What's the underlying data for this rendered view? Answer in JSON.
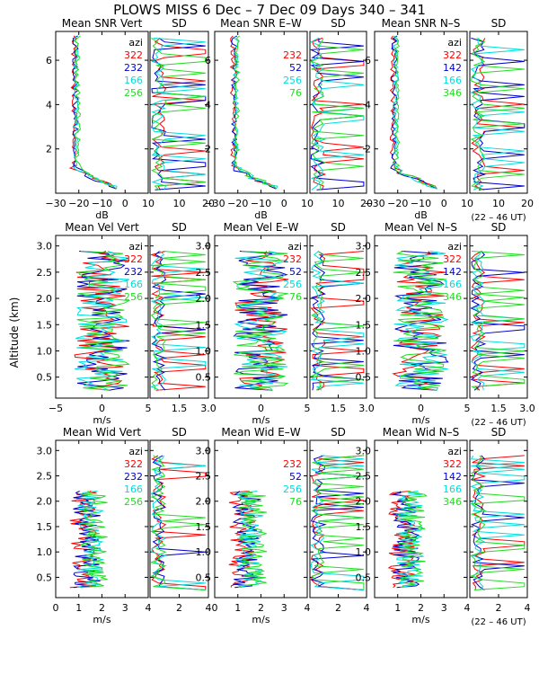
{
  "title": "PLOWS MISS   6 Dec –  7 Dec 09 Days 340 – 341",
  "y_axis_label": "Altitude (km)",
  "time_note": "(22 – 46 UT)",
  "colors": {
    "axes": "#000000",
    "red": "#ff0000",
    "blue": "#0000cc",
    "cyan": "#00dddd",
    "green": "#22dd22"
  },
  "chart_data": [
    {
      "type": "line",
      "row": "snr",
      "ylim": [
        0,
        7.3
      ],
      "ylabels": [
        "2",
        "4",
        "6"
      ],
      "yticks": [
        2,
        4,
        6
      ],
      "xunit": "dB",
      "show_time_note": true,
      "panels": [
        {
          "id": "snr-vert",
          "title": "Mean SNR Vert",
          "kind": "mean",
          "xlim": [
            -30,
            10
          ],
          "xticks": [
            -30,
            -20,
            -10,
            0,
            10
          ],
          "xticklabels": [
            "−30",
            "−20",
            "−10",
            "0",
            "10"
          ],
          "legend": {
            "header": "azi",
            "entries": [
              "322",
              "232",
              "166",
              "256"
            ],
            "colors": [
              "red",
              "blue",
              "cyan",
              "green"
            ]
          }
        },
        {
          "id": "snr-vert-sd",
          "title": "SD",
          "kind": "sd",
          "xlim": [
            0,
            20
          ],
          "xticks": [
            10,
            20
          ],
          "xticklabels": [
            "10",
            "20"
          ]
        },
        {
          "id": "snr-ew",
          "title": "Mean SNR E–W",
          "kind": "mean",
          "xlim": [
            -30,
            10
          ],
          "xticks": [
            -30,
            -20,
            -10,
            0,
            10
          ],
          "xticklabels": [
            "−30",
            "−20",
            "−10",
            "0",
            "10"
          ],
          "legend": {
            "header": "",
            "entries": [
              "232",
              "52",
              "256",
              "76"
            ],
            "colors": [
              "red",
              "blue",
              "cyan",
              "green"
            ]
          }
        },
        {
          "id": "snr-ew-sd",
          "title": "SD",
          "kind": "sd",
          "xlim": [
            0,
            20
          ],
          "xticks": [
            10,
            20
          ],
          "xticklabels": [
            "10",
            "20"
          ]
        },
        {
          "id": "snr-ns",
          "title": "Mean SNR N–S",
          "kind": "mean",
          "xlim": [
            -30,
            10
          ],
          "xticks": [
            -30,
            -20,
            -10,
            0,
            10
          ],
          "xticklabels": [
            "−30",
            "−20",
            "−10",
            "0",
            "10"
          ],
          "legend": {
            "header": "azi",
            "entries": [
              "322",
              "142",
              "166",
              "346"
            ],
            "colors": [
              "red",
              "blue",
              "cyan",
              "green"
            ]
          }
        },
        {
          "id": "snr-ns-sd",
          "title": "SD",
          "kind": "sd",
          "xlim": [
            0,
            20
          ],
          "xticks": [
            10,
            20
          ],
          "xticklabels": [
            "10",
            "20"
          ]
        }
      ]
    },
    {
      "type": "line",
      "row": "vel",
      "ylim": [
        0.1,
        3.2
      ],
      "ylabels": [
        "0.5",
        "1.0",
        "1.5",
        "2.0",
        "2.5",
        "3.0"
      ],
      "yticks": [
        0.5,
        1,
        1.5,
        2,
        2.5,
        3
      ],
      "xunit": "m/s",
      "show_time_note": true,
      "panels": [
        {
          "id": "vel-vert",
          "title": "Mean Vel Vert",
          "kind": "mean",
          "xlim": [
            -5,
            5
          ],
          "xticks": [
            -5,
            0,
            5
          ],
          "xticklabels": [
            "−5",
            "0",
            "5"
          ],
          "legend": {
            "header": "azi",
            "entries": [
              "322",
              "232",
              "166",
              "256"
            ],
            "colors": [
              "red",
              "blue",
              "cyan",
              "green"
            ]
          }
        },
        {
          "id": "vel-vert-sd",
          "title": "SD",
          "kind": "sd",
          "xlim": [
            0,
            3
          ],
          "xticks": [
            1.5,
            3
          ],
          "xticklabels": [
            "1.5",
            "3.0"
          ]
        },
        {
          "id": "vel-ew",
          "title": "Mean Vel E–W",
          "kind": "mean",
          "xlim": [
            -5,
            5
          ],
          "xticks": [
            0,
            5
          ],
          "xticklabels": [
            "0",
            "5"
          ],
          "legend": {
            "header": "azi",
            "entries": [
              "232",
              "52",
              "256",
              "76"
            ],
            "colors": [
              "red",
              "blue",
              "cyan",
              "green"
            ]
          }
        },
        {
          "id": "vel-ew-sd",
          "title": "SD",
          "kind": "sd",
          "xlim": [
            0,
            3
          ],
          "xticks": [
            1.5,
            3
          ],
          "xticklabels": [
            "1.5",
            "3.0"
          ]
        },
        {
          "id": "vel-ns",
          "title": "Mean Vel N–S",
          "kind": "mean",
          "xlim": [
            -5,
            5
          ],
          "xticks": [
            0,
            5
          ],
          "xticklabels": [
            "0",
            "5"
          ],
          "legend": {
            "header": "azi",
            "entries": [
              "322",
              "142",
              "166",
              "346"
            ],
            "colors": [
              "red",
              "blue",
              "cyan",
              "green"
            ]
          }
        },
        {
          "id": "vel-ns-sd",
          "title": "SD",
          "kind": "sd",
          "xlim": [
            0,
            3
          ],
          "xticks": [
            1.5,
            3
          ],
          "xticklabels": [
            "1.5",
            "3.0"
          ]
        }
      ]
    },
    {
      "type": "line",
      "row": "wid",
      "ylim": [
        0.1,
        3.2
      ],
      "ylabels": [
        "0.5",
        "1.0",
        "1.5",
        "2.0",
        "2.5",
        "3.0"
      ],
      "yticks": [
        0.5,
        1,
        1.5,
        2,
        2.5,
        3
      ],
      "xunit": "m/s",
      "show_time_note": true,
      "panels": [
        {
          "id": "wid-vert",
          "title": "Mean Wid Vert",
          "kind": "mean",
          "xlim": [
            0,
            4
          ],
          "xticks": [
            0,
            1,
            2,
            3,
            4
          ],
          "xticklabels": [
            "0",
            "1",
            "2",
            "3",
            "4"
          ],
          "legend": {
            "header": "azi",
            "entries": [
              "322",
              "232",
              "166",
              "256"
            ],
            "colors": [
              "red",
              "blue",
              "cyan",
              "green"
            ]
          }
        },
        {
          "id": "wid-vert-sd",
          "title": "SD",
          "kind": "sd",
          "xlim": [
            0,
            4
          ],
          "xticks": [
            2,
            4
          ],
          "xticklabels": [
            "2",
            "4"
          ]
        },
        {
          "id": "wid-ew",
          "title": "Mean Wid E–W",
          "kind": "mean",
          "xlim": [
            0,
            4
          ],
          "xticks": [
            0,
            1,
            2,
            3,
            4
          ],
          "xticklabels": [
            "0",
            "1",
            "2",
            "3",
            "4"
          ],
          "legend": {
            "header": "",
            "entries": [
              "232",
              "52",
              "256",
              "76"
            ],
            "colors": [
              "red",
              "blue",
              "cyan",
              "green"
            ]
          }
        },
        {
          "id": "wid-ew-sd",
          "title": "SD",
          "kind": "sd",
          "xlim": [
            0,
            4
          ],
          "xticks": [
            2,
            4
          ],
          "xticklabels": [
            "2",
            "4"
          ]
        },
        {
          "id": "wid-ns",
          "title": "Mean Wid N–S",
          "kind": "mean",
          "xlim": [
            0,
            4
          ],
          "xticks": [
            1,
            2,
            3,
            4
          ],
          "xticklabels": [
            "1",
            "2",
            "3",
            "4"
          ],
          "legend": {
            "header": "azi",
            "entries": [
              "322",
              "142",
              "166",
              "346"
            ],
            "colors": [
              "red",
              "blue",
              "cyan",
              "green"
            ]
          }
        },
        {
          "id": "wid-ns-sd",
          "title": "SD",
          "kind": "sd",
          "xlim": [
            0,
            4
          ],
          "xticks": [
            2,
            4
          ],
          "xticklabels": [
            "2",
            "4"
          ]
        }
      ]
    }
  ]
}
